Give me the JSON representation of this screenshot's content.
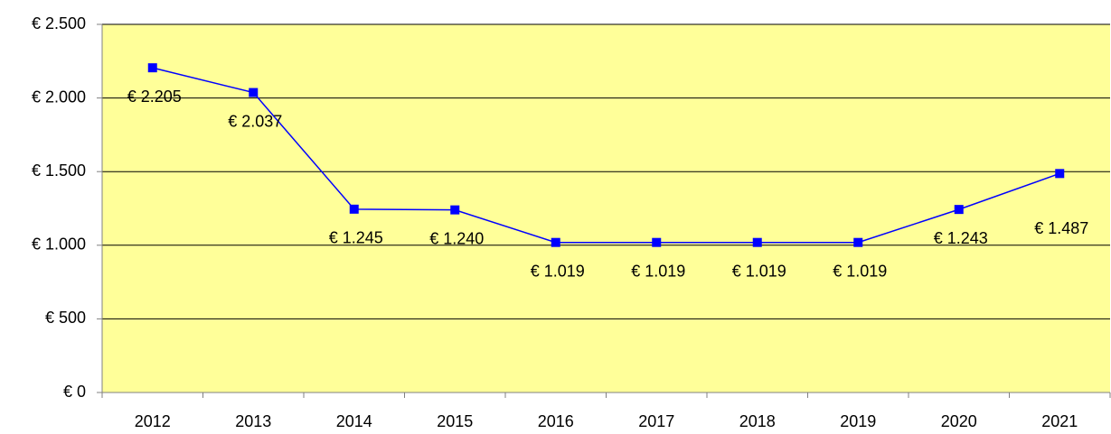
{
  "chart_data": {
    "type": "line",
    "categories": [
      "2012",
      "2013",
      "2014",
      "2015",
      "2016",
      "2017",
      "2018",
      "2019",
      "2020",
      "2021"
    ],
    "series": [
      {
        "color": "#0000ff",
        "values": [
          2205,
          2037,
          1245,
          1240,
          1019,
          1019,
          1019,
          1019,
          1243,
          1487
        ],
        "value_labels": [
          "€ 2.205",
          "€ 2.037",
          "€ 1.245",
          "€ 1.240",
          "€ 1.019",
          "€ 1.019",
          "€ 1.019",
          "€ 1.019",
          "€ 1.243",
          "€ 1.487"
        ]
      }
    ],
    "ylim": [
      0,
      2500
    ],
    "yticks": [
      {
        "value": 0,
        "label": "€ 0"
      },
      {
        "value": 500,
        "label": "€ 500"
      },
      {
        "value": 1000,
        "label": "€ 1.000"
      },
      {
        "value": 1500,
        "label": "€ 1.500"
      },
      {
        "value": 2000,
        "label": "€ 2.000"
      },
      {
        "value": 2500,
        "label": "€ 2.500"
      }
    ],
    "grid": true,
    "background": "#ffff99"
  }
}
